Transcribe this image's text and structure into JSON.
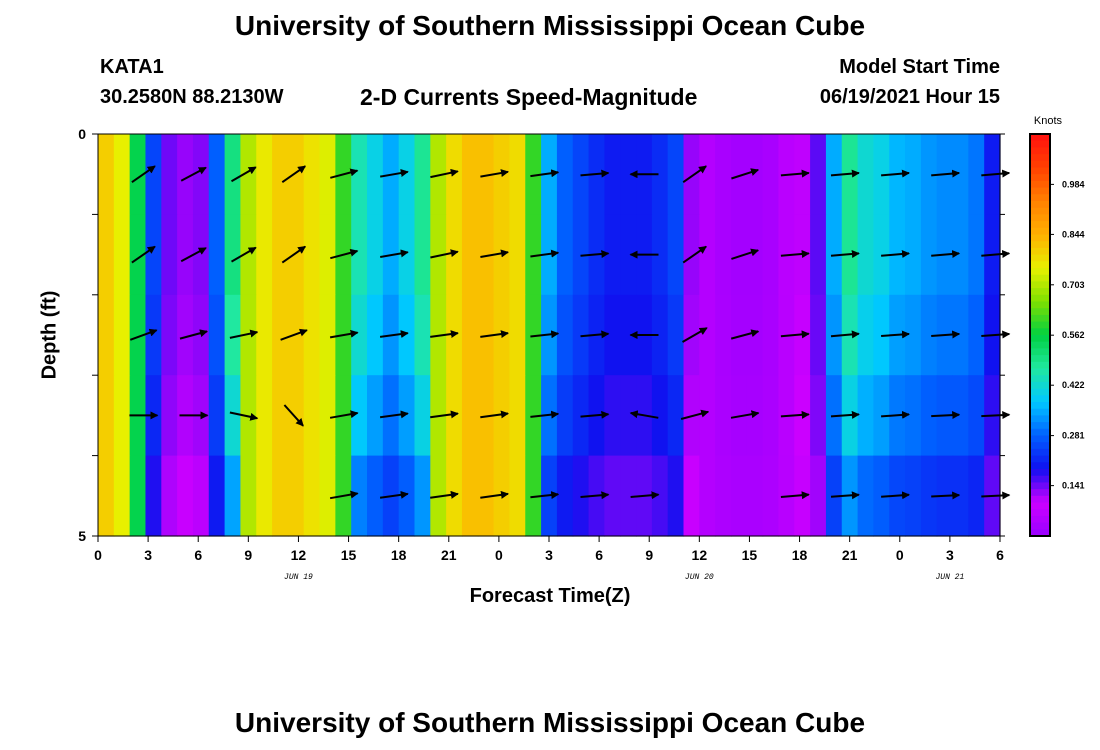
{
  "header": {
    "title": "University of Southern Mississippi Ocean Cube",
    "station": "KATA1",
    "coords": "30.2580N  88.2130W",
    "subtitle": "2-D Currents Speed-Magnitude",
    "model_start_label": "Model Start Time",
    "model_start_value": "06/19/2021 Hour 15"
  },
  "footer": {
    "title": "University of Southern Mississippi Ocean Cube"
  },
  "chart_data": {
    "type": "heatmap",
    "xlabel": "Forecast Time(Z)",
    "ylabel": "Depth (ft)",
    "x_tick_labels": [
      "0",
      "3",
      "6",
      "9",
      "12",
      "15",
      "18",
      "21",
      "0",
      "3",
      "6",
      "9",
      "12",
      "15",
      "18",
      "21",
      "0",
      "3",
      "6"
    ],
    "y_tick_labels": [
      "0",
      "5"
    ],
    "ylim": [
      0,
      5
    ],
    "date_labels": [
      {
        "text": "JUN 19",
        "hour_index": 12
      },
      {
        "text": "JUN 20",
        "hour_index": 36
      },
      {
        "text": "JUN 21",
        "hour_index": 51
      }
    ],
    "colorbar": {
      "label": "Knots",
      "ticks": [
        "0.984",
        "0.844",
        "0.703",
        "0.562",
        "0.422",
        "0.281",
        "0.141"
      ],
      "range": [
        0.0,
        1.125
      ],
      "colors": [
        "#9900ff",
        "#cc00ff",
        "#1010f0",
        "#0060ff",
        "#00c8ff",
        "#20e8a0",
        "#00d040",
        "#80e000",
        "#e8f000",
        "#ffb000",
        "#ff8000",
        "#ff4000",
        "#ff1010"
      ]
    },
    "column_speeds": [
      0.8,
      0.75,
      0.55,
      0.25,
      0.14,
      0.12,
      0.13,
      0.28,
      0.5,
      0.7,
      0.76,
      0.8,
      0.8,
      0.77,
      0.74,
      0.6,
      0.45,
      0.4,
      0.35,
      0.4,
      0.48,
      0.7,
      0.78,
      0.82,
      0.82,
      0.8,
      0.78,
      0.6,
      0.35,
      0.28,
      0.25,
      0.22,
      0.2,
      0.2,
      0.2,
      0.22,
      0.25,
      0.12,
      0.05,
      0.03,
      0.02,
      0.02,
      0.03,
      0.06,
      0.1,
      0.15,
      0.35,
      0.48,
      0.42,
      0.4,
      0.36,
      0.35,
      0.33,
      0.32,
      0.32,
      0.3,
      0.2
    ],
    "row_factors": [
      1.0,
      1.0,
      0.93,
      0.82,
      0.65
    ],
    "arrow_hours": [
      2,
      5,
      8,
      11,
      14,
      17,
      20,
      23,
      26,
      29,
      32,
      35,
      38,
      41,
      44,
      47,
      50,
      53
    ],
    "arrow_depth_rows": [
      0.5,
      1.5,
      2.5,
      3.5,
      4.5
    ],
    "arrow_angles": [
      [
        -35,
        -28,
        -30,
        -35,
        -15,
        -10,
        -12,
        -10,
        -8,
        -5,
        180,
        -35,
        -18,
        -5,
        -5,
        -5,
        -5,
        -5
      ],
      [
        -35,
        -28,
        -30,
        -35,
        -15,
        -10,
        -12,
        -10,
        -8,
        -5,
        180,
        -35,
        -18,
        -5,
        -5,
        -5,
        -5,
        -5
      ],
      [
        -20,
        -15,
        -12,
        -20,
        -10,
        -8,
        -8,
        -8,
        -6,
        -5,
        180,
        -30,
        -15,
        -5,
        -5,
        -4,
        -4,
        -4
      ],
      [
        0,
        0,
        12,
        48,
        -10,
        -8,
        -8,
        -8,
        -6,
        -5,
        190,
        -15,
        -10,
        -4,
        -4,
        -4,
        -3,
        -3
      ],
      [
        null,
        null,
        null,
        null,
        -10,
        -8,
        -8,
        -8,
        -6,
        -5,
        -5,
        null,
        null,
        -5,
        -4,
        -4,
        -3,
        -3
      ]
    ]
  }
}
